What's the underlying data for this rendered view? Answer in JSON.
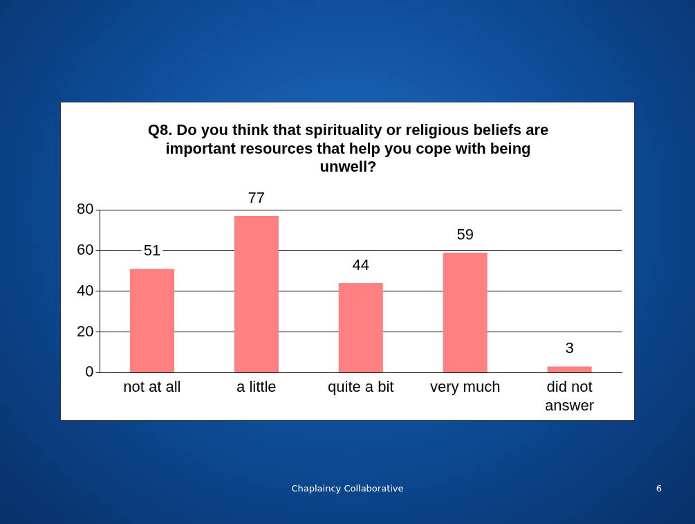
{
  "chart_data": {
    "type": "bar",
    "title": "Q8. Do you think that spirituality or religious beliefs are important resources that help you cope with being unwell?",
    "categories": [
      "not at all",
      "a little",
      "quite a bit",
      "very much",
      "did not answer"
    ],
    "values": [
      51,
      77,
      44,
      59,
      3
    ],
    "color": "#ff8080",
    "ylim": [
      0,
      80
    ],
    "yticks": [
      0,
      20,
      40,
      60,
      80
    ],
    "grid": "y",
    "legend": false,
    "data_labels": true,
    "annotations": [
      "Chaplaincy Collaborative",
      "6"
    ]
  }
}
